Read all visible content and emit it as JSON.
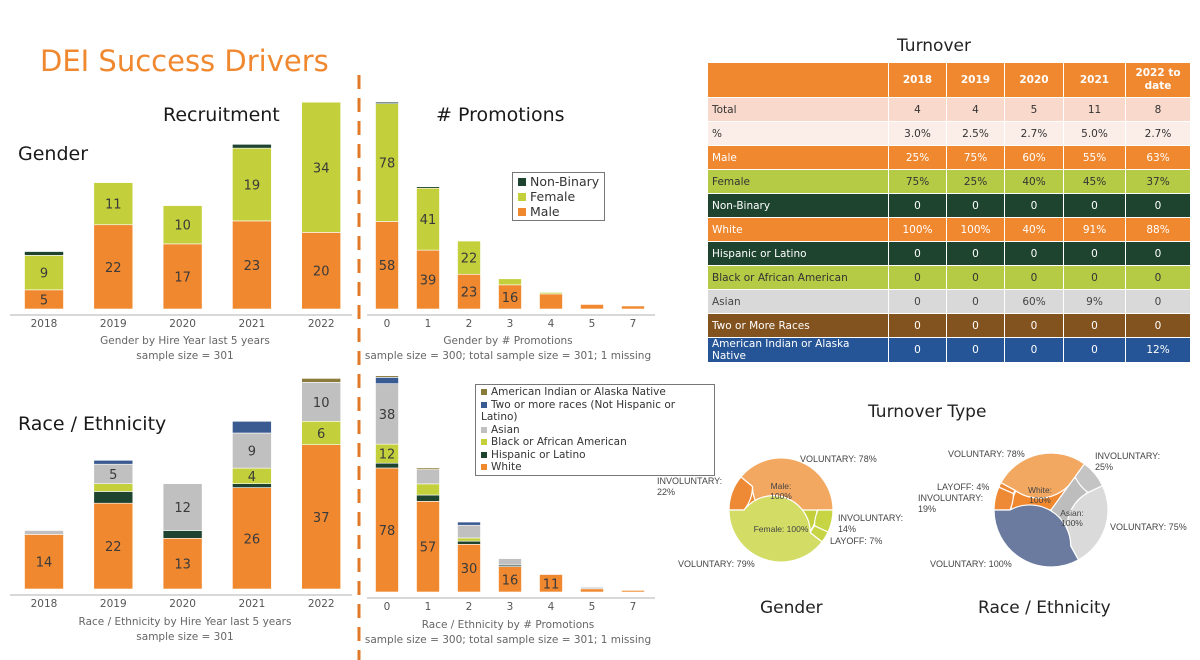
{
  "title": "DEI Success Drivers",
  "sections": {
    "recruitment": "Recruitment",
    "promotions": "# Promotions",
    "gender": "Gender",
    "race": "Race / Ethnicity",
    "turnover": "Turnover",
    "turnover_type": "Turnover Type",
    "pie_gender": "Gender",
    "pie_race": "Race / Ethnicity"
  },
  "colors": {
    "orange": "#F0882F",
    "lime": "#C3D03B",
    "dark_green": "#1E4430",
    "gray": "#C0C0C0",
    "blue": "#3A5A92",
    "olive": "#8A7B3A"
  },
  "chart_data": [
    {
      "type": "bar",
      "stacked": true,
      "caption": [
        "Gender by Hire Year last 5 years",
        "sample size = 301"
      ],
      "categories": [
        "2018",
        "2019",
        "2020",
        "2021",
        "2022"
      ],
      "series": [
        {
          "name": "Male",
          "color": "#F0882F",
          "values": [
            5,
            22,
            17,
            23,
            20
          ],
          "data_labels": [
            5,
            22,
            17,
            23,
            20
          ]
        },
        {
          "name": "Female",
          "color": "#C3D03B",
          "values": [
            9,
            11,
            10,
            19,
            34
          ],
          "data_labels": [
            9,
            11,
            10,
            19,
            34
          ]
        },
        {
          "name": "Non-Binary",
          "color": "#1E4430",
          "values": [
            1,
            0,
            0,
            1,
            0
          ],
          "data_labels": [
            null,
            null,
            null,
            null,
            null
          ]
        }
      ],
      "grid": false
    },
    {
      "type": "bar",
      "stacked": true,
      "caption": [
        "Gender by # Promotions",
        "sample size = 300; total sample size = 301; 1 missing"
      ],
      "categories": [
        "0",
        "1",
        "2",
        "3",
        "4",
        "5",
        "7"
      ],
      "legend": {
        "position": "right",
        "entries": [
          "Non-Binary",
          "Female",
          "Male"
        ]
      },
      "series": [
        {
          "name": "Male",
          "color": "#F0882F",
          "values": [
            58,
            39,
            23,
            16,
            10,
            3,
            2
          ],
          "data_labels": [
            58,
            39,
            23,
            16,
            null,
            null,
            null
          ]
        },
        {
          "name": "Female",
          "color": "#C3D03B",
          "values": [
            78,
            41,
            22,
            4,
            1,
            0,
            0
          ],
          "data_labels": [
            78,
            41,
            22,
            null,
            null,
            null,
            null
          ]
        },
        {
          "name": "Non-Binary",
          "color": "#1E4430",
          "values": [
            1,
            1,
            0,
            0,
            0,
            0,
            0
          ],
          "data_labels": [
            null,
            null,
            null,
            null,
            null,
            null,
            null
          ]
        }
      ],
      "grid": false
    },
    {
      "type": "bar",
      "stacked": true,
      "caption": [
        "Race / Ethnicity by Hire Year last 5 years",
        "sample size = 301"
      ],
      "categories": [
        "2018",
        "2019",
        "2020",
        "2021",
        "2022"
      ],
      "series": [
        {
          "name": "White",
          "color": "#F0882F",
          "values": [
            14,
            22,
            13,
            26,
            37
          ],
          "data_labels": [
            14,
            22,
            13,
            26,
            37
          ]
        },
        {
          "name": "Hispanic or Latino",
          "color": "#1E4430",
          "values": [
            0,
            3,
            2,
            1,
            0
          ],
          "data_labels": [
            null,
            null,
            null,
            null,
            null
          ]
        },
        {
          "name": "Black or African American",
          "color": "#C3D03B",
          "values": [
            0,
            2,
            0,
            4,
            6
          ],
          "data_labels": [
            null,
            null,
            null,
            4,
            6
          ]
        },
        {
          "name": "Asian",
          "color": "#C0C0C0",
          "values": [
            1,
            5,
            12,
            9,
            10
          ],
          "data_labels": [
            null,
            5,
            12,
            9,
            10
          ]
        },
        {
          "name": "Two or more races (Not Hispanic or Latino)",
          "color": "#3A5A92",
          "values": [
            0,
            1,
            0,
            3,
            0
          ],
          "data_labels": [
            null,
            null,
            null,
            null,
            null
          ]
        },
        {
          "name": "American Indian or Alaska Native",
          "color": "#8A7B3A",
          "values": [
            0,
            0,
            0,
            0,
            1
          ],
          "data_labels": [
            null,
            null,
            null,
            null,
            null
          ]
        }
      ],
      "grid": false
    },
    {
      "type": "bar",
      "stacked": true,
      "caption": [
        "Race / Ethnicity by # Promotions",
        "sample size = 300; total sample size = 301; 1 missing"
      ],
      "categories": [
        "0",
        "1",
        "2",
        "3",
        "4",
        "5",
        "7"
      ],
      "legend": {
        "position": "right",
        "entries": [
          "American Indian or Alaska Native",
          "Two or more races (Not Hispanic or Latino)",
          "Asian",
          "Black or African American",
          "Hispanic or Latino",
          "White"
        ]
      },
      "series": [
        {
          "name": "White",
          "color": "#F0882F",
          "values": [
            78,
            57,
            30,
            16,
            11,
            2,
            1
          ],
          "data_labels": [
            78,
            57,
            30,
            16,
            11,
            null,
            null
          ]
        },
        {
          "name": "Hispanic or Latino",
          "color": "#1E4430",
          "values": [
            3,
            4,
            2,
            1,
            0,
            0,
            0
          ],
          "data_labels": [
            null,
            null,
            null,
            null,
            null,
            null,
            null
          ]
        },
        {
          "name": "Black or African American",
          "color": "#C3D03B",
          "values": [
            12,
            7,
            2,
            0,
            0,
            0,
            0
          ],
          "data_labels": [
            12,
            null,
            null,
            null,
            null,
            null,
            null
          ]
        },
        {
          "name": "Asian",
          "color": "#C0C0C0",
          "values": [
            38,
            9,
            8,
            4,
            0,
            1,
            0
          ],
          "data_labels": [
            38,
            null,
            null,
            null,
            null,
            null,
            null
          ]
        },
        {
          "name": "Two or more races (Not Hispanic or Latino)",
          "color": "#3A5A92",
          "values": [
            4,
            0,
            2,
            0,
            0,
            0,
            0
          ],
          "data_labels": [
            null,
            null,
            null,
            null,
            null,
            null,
            null
          ]
        },
        {
          "name": "American Indian or Alaska Native",
          "color": "#8A7B3A",
          "values": [
            1,
            1,
            0,
            0,
            0,
            0,
            0
          ],
          "data_labels": [
            null,
            null,
            null,
            null,
            null,
            null,
            null
          ]
        }
      ],
      "grid": false
    },
    {
      "type": "pie",
      "title": "Gender",
      "donut": true,
      "inner": [
        {
          "name": "Male",
          "label": "Male:\n100%",
          "share": 50,
          "color": "#F0882F",
          "outer": [
            {
              "name": "INVOLUNTARY",
              "value": 22,
              "label": "INVOLUNTARY:\n22%",
              "color": "#EE8A35"
            },
            {
              "name": "VOLUNTARY",
              "value": 78,
              "label": "VOLUNTARY: 78%",
              "color": "#F3A862"
            }
          ]
        },
        {
          "name": "Female",
          "label": "Female: 100%",
          "share": 50,
          "color": "#C3D03B",
          "outer": [
            {
              "name": "INVOLUNTARY",
              "value": 14,
              "label": "INVOLUNTARY:\n14%",
              "color": "#C7D443"
            },
            {
              "name": "LAYOFF",
              "value": 7,
              "label": "LAYOFF: 7%",
              "color": "#C7D443"
            },
            {
              "name": "VOLUNTARY",
              "value": 79,
              "label": "VOLUNTARY: 79%",
              "color": "#D3DD66"
            }
          ]
        }
      ]
    },
    {
      "type": "pie",
      "title": "Race / Ethnicity",
      "donut": true,
      "inner": [
        {
          "name": "White",
          "label": "White:\n100%",
          "share": 35,
          "color": "#F0882F",
          "outer": [
            {
              "name": "INVOLUNTARY",
              "value": 19,
              "label": "INVOLUNTARY:\n19%",
              "color": "#EE8A35"
            },
            {
              "name": "LAYOFF",
              "value": 4,
              "label": "LAYOFF: 4%",
              "color": "#EE8A35"
            },
            {
              "name": "VOLUNTARY",
              "value": 78,
              "label": "VOLUNTARY: 78%",
              "color": "#F3A862"
            }
          ]
        },
        {
          "name": "Asian",
          "label": "Asian:\n100%",
          "share": 32,
          "color": "#BDBDBD",
          "outer": [
            {
              "name": "INVOLUNTARY",
              "value": 25,
              "label": "INVOLUNTARY:\n25%",
              "color": "#C4C4C4"
            },
            {
              "name": "VOLUNTARY",
              "value": 75,
              "label": "VOLUNTARY: 75%",
              "color": "#DADADA"
            }
          ]
        },
        {
          "name": "",
          "label": "",
          "share": 33,
          "color": "#2E416B",
          "outer": [
            {
              "name": "VOLUNTARY",
              "value": 100,
              "label": "VOLUNTARY: 100%",
              "color": "#6B7BA0"
            }
          ]
        }
      ]
    }
  ],
  "turnover_table": {
    "columns": [
      "",
      "2018",
      "2019",
      "2020",
      "2021",
      "2022 to date"
    ],
    "rows": [
      {
        "label": "Total",
        "values": [
          "4",
          "4",
          "5",
          "11",
          "8"
        ],
        "bg": "#F9D9CC",
        "fg": "#333"
      },
      {
        "label": "%",
        "values": [
          "3.0%",
          "2.5%",
          "2.7%",
          "5.0%",
          "2.7%"
        ],
        "bg": "#FBEDE8",
        "fg": "#333"
      },
      {
        "label": "Male",
        "values": [
          "25%",
          "75%",
          "60%",
          "55%",
          "63%"
        ],
        "bg": "#F0882F",
        "fg": "#fff"
      },
      {
        "label": "Female",
        "values": [
          "75%",
          "25%",
          "40%",
          "45%",
          "37%"
        ],
        "bg": "#B5CA45",
        "fg": "#333"
      },
      {
        "label": "Non-Binary",
        "values": [
          "0",
          "0",
          "0",
          "0",
          "0"
        ],
        "bg": "#1E4430",
        "fg": "#fff"
      },
      {
        "label": "White",
        "values": [
          "100%",
          "100%",
          "40%",
          "91%",
          "88%"
        ],
        "bg": "#F0882F",
        "fg": "#fff"
      },
      {
        "label": "Hispanic or Latino",
        "values": [
          "0",
          "0",
          "0",
          "0",
          "0"
        ],
        "bg": "#1E4430",
        "fg": "#fff"
      },
      {
        "label": "Black or African American",
        "values": [
          "0",
          "0",
          "0",
          "0",
          "0"
        ],
        "bg": "#B5CA45",
        "fg": "#333"
      },
      {
        "label": "Asian",
        "values": [
          "0",
          "0",
          "60%",
          "9%",
          "0"
        ],
        "bg": "#D9D9D9",
        "fg": "#444"
      },
      {
        "label": "Two or More Races",
        "values": [
          "0",
          "0",
          "0",
          "0",
          "0"
        ],
        "bg": "#83531F",
        "fg": "#fff"
      },
      {
        "label": "American Indian or Alaska Native",
        "values": [
          "0",
          "0",
          "0",
          "0",
          "12%"
        ],
        "bg": "#255597",
        "fg": "#fff"
      }
    ]
  }
}
